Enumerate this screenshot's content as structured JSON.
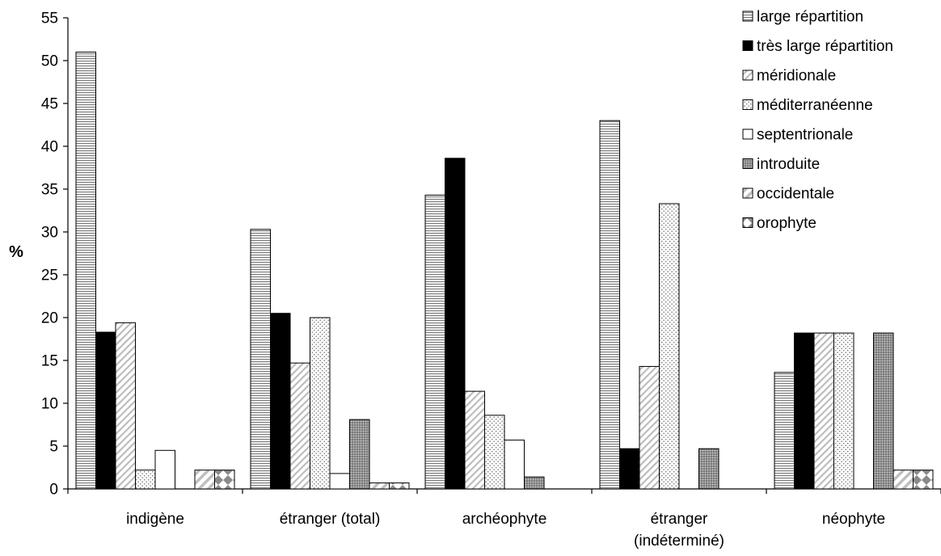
{
  "chart_data": {
    "type": "bar",
    "title": "",
    "xlabel": "",
    "ylabel": "%",
    "ylim": [
      0,
      55
    ],
    "yticks": [
      0,
      5,
      10,
      15,
      20,
      25,
      30,
      35,
      40,
      45,
      50,
      55
    ],
    "grid": false,
    "legend_position": "top-right",
    "categories": [
      [
        "indigène"
      ],
      [
        "étranger (total)"
      ],
      [
        "archéophyte"
      ],
      [
        "étranger",
        "(indéterminé)"
      ],
      [
        "néophyte"
      ]
    ],
    "series": [
      {
        "name": "large répartition",
        "pattern": "horizontal-lines",
        "values": [
          51,
          30.3,
          34.3,
          43,
          13.6
        ]
      },
      {
        "name": "très large répartition",
        "pattern": "solid-black",
        "values": [
          18.3,
          20.5,
          38.6,
          4.7,
          18.2
        ]
      },
      {
        "name": "méridionale",
        "pattern": "diagonal-light",
        "values": [
          19.4,
          14.7,
          11.4,
          14.3,
          18.2
        ]
      },
      {
        "name": "méditerranéenne",
        "pattern": "dots",
        "values": [
          2.2,
          20,
          8.6,
          33.3,
          18.2
        ]
      },
      {
        "name": "septentrionale",
        "pattern": "white",
        "values": [
          4.5,
          1.8,
          5.7,
          0,
          0
        ]
      },
      {
        "name": "introduite",
        "pattern": "dense-dots",
        "values": [
          0,
          8.1,
          1.4,
          4.7,
          18.2
        ]
      },
      {
        "name": "occidentale",
        "pattern": "diagonal-bold",
        "values": [
          2.2,
          0.7,
          0,
          0,
          2.2
        ]
      },
      {
        "name": "orophyte",
        "pattern": "diamonds",
        "values": [
          2.2,
          0.7,
          0,
          0,
          2.2
        ]
      }
    ]
  }
}
